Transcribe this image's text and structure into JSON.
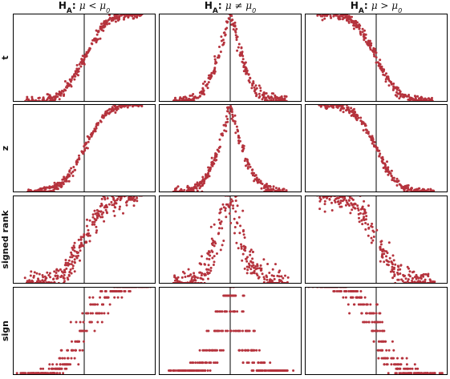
{
  "figure": {
    "columns": [
      {
        "prefix": "H",
        "sub": "A",
        "sep": ": ",
        "hyp": "μ < μ",
        "hyp_sub": "0"
      },
      {
        "prefix": "H",
        "sub": "A",
        "sep": ": ",
        "hyp": "μ ≠ μ",
        "hyp_sub": "0"
      },
      {
        "prefix": "H",
        "sub": "A",
        "sep": ": ",
        "hyp": "μ > μ",
        "hyp_sub": "0"
      }
    ],
    "rows": [
      "t",
      "z",
      "signed rank",
      "sign"
    ],
    "colors": {
      "points": "#b5333d",
      "frame": "#000000",
      "background": "#ffffff"
    }
  },
  "chart_data": {
    "type": "scatter",
    "description_axes": "no printed axis tick labels",
    "xlim": [
      -4,
      4
    ],
    "ylim": [
      0,
      1
    ],
    "reference_x": 0,
    "x_data_range": [
      -3.2,
      3.2
    ],
    "panels": [
      {
        "row": "t",
        "col": 0,
        "shape": "left-cdf",
        "noise": 0.025,
        "discrete": false
      },
      {
        "row": "t",
        "col": 1,
        "shape": "two-sided",
        "noise": 0.03,
        "discrete": false
      },
      {
        "row": "t",
        "col": 2,
        "shape": "right-cdf",
        "noise": 0.025,
        "discrete": false
      },
      {
        "row": "z",
        "col": 0,
        "shape": "left-cdf",
        "noise": 0.02,
        "discrete": false
      },
      {
        "row": "z",
        "col": 1,
        "shape": "two-sided",
        "noise": 0.025,
        "discrete": false
      },
      {
        "row": "z",
        "col": 2,
        "shape": "right-cdf",
        "noise": 0.02,
        "discrete": false
      },
      {
        "row": "signed rank",
        "col": 0,
        "shape": "left-cdf",
        "noise": 0.06,
        "discrete": false
      },
      {
        "row": "signed rank",
        "col": 1,
        "shape": "two-sided",
        "noise": 0.08,
        "discrete": false
      },
      {
        "row": "signed rank",
        "col": 2,
        "shape": "right-cdf",
        "noise": 0.06,
        "discrete": false
      },
      {
        "row": "sign",
        "col": 0,
        "shape": "left-cdf",
        "noise": 0.0,
        "discrete": true
      },
      {
        "row": "sign",
        "col": 1,
        "shape": "two-sided",
        "noise": 0.0,
        "discrete": true
      },
      {
        "row": "sign",
        "col": 2,
        "shape": "right-cdf",
        "noise": 0.0,
        "discrete": true
      }
    ],
    "points_per_panel": 300,
    "sign_levels": [
      0.02,
      0.07,
      0.12,
      0.19,
      0.28,
      0.38,
      0.5,
      0.6,
      0.7,
      0.8,
      0.88,
      0.95,
      1.0
    ],
    "sign_levels_two_sided": [
      0.05,
      0.14,
      0.28,
      0.5,
      0.72,
      0.9,
      1.0
    ]
  }
}
